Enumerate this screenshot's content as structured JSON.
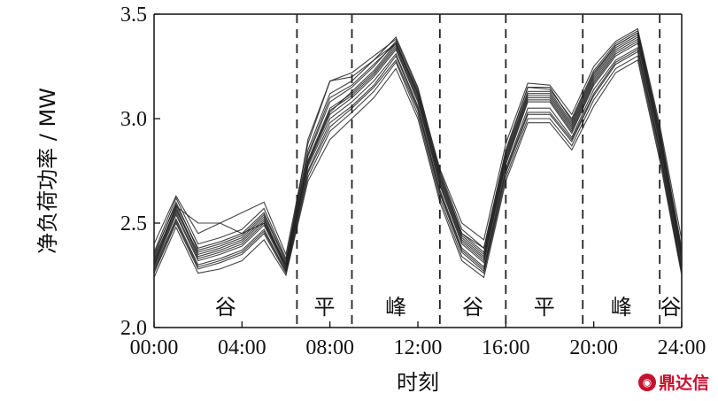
{
  "chart_data": {
    "type": "line",
    "title": "",
    "xlabel": "时刻",
    "ylabel": "净负荷功率 / MW",
    "x_tick_labels": [
      "00:00",
      "04:00",
      "08:00",
      "12:00",
      "16:00",
      "20:00",
      "24:00"
    ],
    "y_tick_labels": [
      "2.0",
      "2.5",
      "3.0",
      "3.5"
    ],
    "xlim": [
      0,
      24
    ],
    "ylim": [
      2.0,
      3.5
    ],
    "grid": false,
    "line_color": "#222222",
    "divider_hours": [
      6.5,
      9,
      13,
      16,
      19.5,
      23
    ],
    "periods": [
      {
        "label": "谷",
        "center_hour": 3.25
      },
      {
        "label": "平",
        "center_hour": 7.75
      },
      {
        "label": "峰",
        "center_hour": 11
      },
      {
        "label": "谷",
        "center_hour": 14.5
      },
      {
        "label": "平",
        "center_hour": 17.75
      },
      {
        "label": "峰",
        "center_hour": 21.25
      },
      {
        "label": "谷",
        "center_hour": 23.5
      }
    ],
    "x": [
      0,
      1,
      2,
      3,
      4,
      5,
      6,
      7,
      8,
      9,
      10,
      11,
      12,
      13,
      14,
      15,
      16,
      17,
      18,
      19,
      20,
      21,
      22,
      23,
      24
    ],
    "series": [
      {
        "values": [
          2.32,
          2.58,
          2.35,
          2.38,
          2.42,
          2.52,
          2.3,
          2.8,
          3.05,
          3.12,
          3.22,
          3.35,
          3.1,
          2.7,
          2.42,
          2.33,
          2.8,
          3.1,
          3.1,
          2.95,
          3.18,
          3.32,
          3.38,
          2.9,
          2.33
        ]
      },
      {
        "values": [
          2.3,
          2.55,
          2.33,
          2.36,
          2.4,
          2.5,
          2.29,
          2.78,
          3.02,
          3.1,
          3.2,
          3.33,
          3.08,
          2.68,
          2.4,
          2.31,
          2.78,
          3.08,
          3.08,
          2.93,
          3.16,
          3.3,
          3.36,
          2.88,
          2.31
        ]
      },
      {
        "values": [
          2.34,
          2.6,
          2.37,
          2.4,
          2.44,
          2.54,
          2.31,
          2.82,
          3.08,
          3.15,
          3.25,
          3.37,
          3.12,
          2.72,
          2.44,
          2.35,
          2.82,
          3.12,
          3.12,
          2.97,
          3.2,
          3.34,
          3.4,
          2.92,
          2.35
        ]
      },
      {
        "values": [
          2.28,
          2.52,
          2.3,
          2.33,
          2.37,
          2.47,
          2.27,
          2.75,
          2.98,
          3.06,
          3.16,
          3.3,
          3.05,
          2.65,
          2.37,
          2.28,
          2.75,
          3.03,
          3.03,
          2.9,
          3.12,
          3.27,
          3.33,
          2.85,
          2.28
        ]
      },
      {
        "values": [
          2.36,
          2.62,
          2.4,
          2.43,
          2.47,
          2.57,
          2.33,
          2.85,
          3.12,
          3.18,
          3.28,
          3.39,
          3.15,
          2.75,
          2.47,
          2.38,
          2.85,
          3.15,
          3.14,
          3.0,
          3.23,
          3.36,
          3.42,
          2.95,
          2.38
        ]
      },
      {
        "values": [
          2.26,
          2.5,
          2.28,
          2.31,
          2.35,
          2.45,
          2.26,
          2.72,
          2.94,
          3.03,
          3.13,
          3.27,
          3.02,
          2.62,
          2.34,
          2.26,
          2.72,
          3.0,
          3.0,
          2.87,
          3.09,
          3.24,
          3.3,
          2.82,
          2.26
        ]
      },
      {
        "values": [
          2.4,
          2.63,
          2.45,
          2.5,
          2.55,
          2.6,
          2.35,
          2.88,
          3.18,
          3.22,
          3.3,
          3.38,
          3.14,
          2.76,
          2.5,
          2.42,
          2.88,
          3.17,
          3.16,
          3.02,
          3.25,
          3.37,
          3.43,
          2.97,
          2.42
        ]
      },
      {
        "values": [
          2.24,
          2.48,
          2.26,
          2.28,
          2.32,
          2.42,
          2.25,
          2.7,
          2.9,
          3.0,
          3.1,
          3.24,
          3.0,
          2.6,
          2.32,
          2.24,
          2.7,
          2.98,
          2.98,
          2.85,
          3.06,
          3.22,
          3.28,
          2.8,
          2.25
        ]
      },
      {
        "values": [
          2.33,
          2.57,
          2.34,
          2.37,
          2.41,
          2.51,
          2.3,
          2.79,
          3.04,
          3.11,
          3.21,
          3.34,
          3.09,
          2.69,
          2.41,
          2.32,
          2.79,
          3.09,
          3.09,
          2.94,
          3.17,
          3.31,
          3.37,
          2.89,
          2.32
        ]
      },
      {
        "values": [
          2.31,
          2.56,
          2.36,
          2.39,
          2.43,
          2.53,
          2.28,
          2.79,
          3.03,
          3.13,
          3.23,
          3.36,
          3.11,
          2.71,
          2.43,
          2.34,
          2.81,
          3.11,
          3.11,
          2.96,
          3.19,
          3.33,
          3.39,
          2.91,
          2.34
        ]
      },
      {
        "values": [
          2.29,
          2.54,
          2.32,
          2.35,
          2.39,
          2.49,
          2.28,
          2.77,
          3.0,
          3.08,
          3.18,
          3.31,
          3.06,
          2.66,
          2.38,
          2.29,
          2.76,
          3.05,
          3.05,
          2.91,
          3.14,
          3.28,
          3.34,
          2.86,
          2.29
        ]
      },
      {
        "values": [
          2.35,
          2.59,
          2.38,
          2.41,
          2.45,
          2.55,
          2.32,
          2.83,
          3.1,
          3.16,
          3.26,
          3.36,
          3.13,
          2.73,
          2.45,
          2.36,
          2.83,
          3.13,
          3.13,
          2.98,
          3.21,
          3.35,
          3.41,
          2.93,
          2.36
        ]
      },
      {
        "values": [
          2.3,
          2.58,
          2.5,
          2.5,
          2.45,
          2.5,
          2.3,
          2.9,
          3.18,
          3.2,
          3.28,
          3.36,
          3.12,
          2.74,
          2.45,
          2.38,
          2.84,
          3.15,
          3.15,
          2.99,
          3.22,
          3.35,
          3.41,
          2.94,
          2.36
        ]
      },
      {
        "values": [
          2.27,
          2.51,
          2.29,
          2.32,
          2.36,
          2.46,
          2.27,
          2.74,
          2.96,
          3.05,
          3.15,
          3.28,
          3.04,
          2.64,
          2.36,
          2.27,
          2.74,
          3.02,
          3.02,
          2.89,
          3.11,
          3.26,
          3.32,
          2.84,
          2.27
        ]
      }
    ]
  },
  "watermark": {
    "text": "鼎达信",
    "color": "#c8102e"
  }
}
